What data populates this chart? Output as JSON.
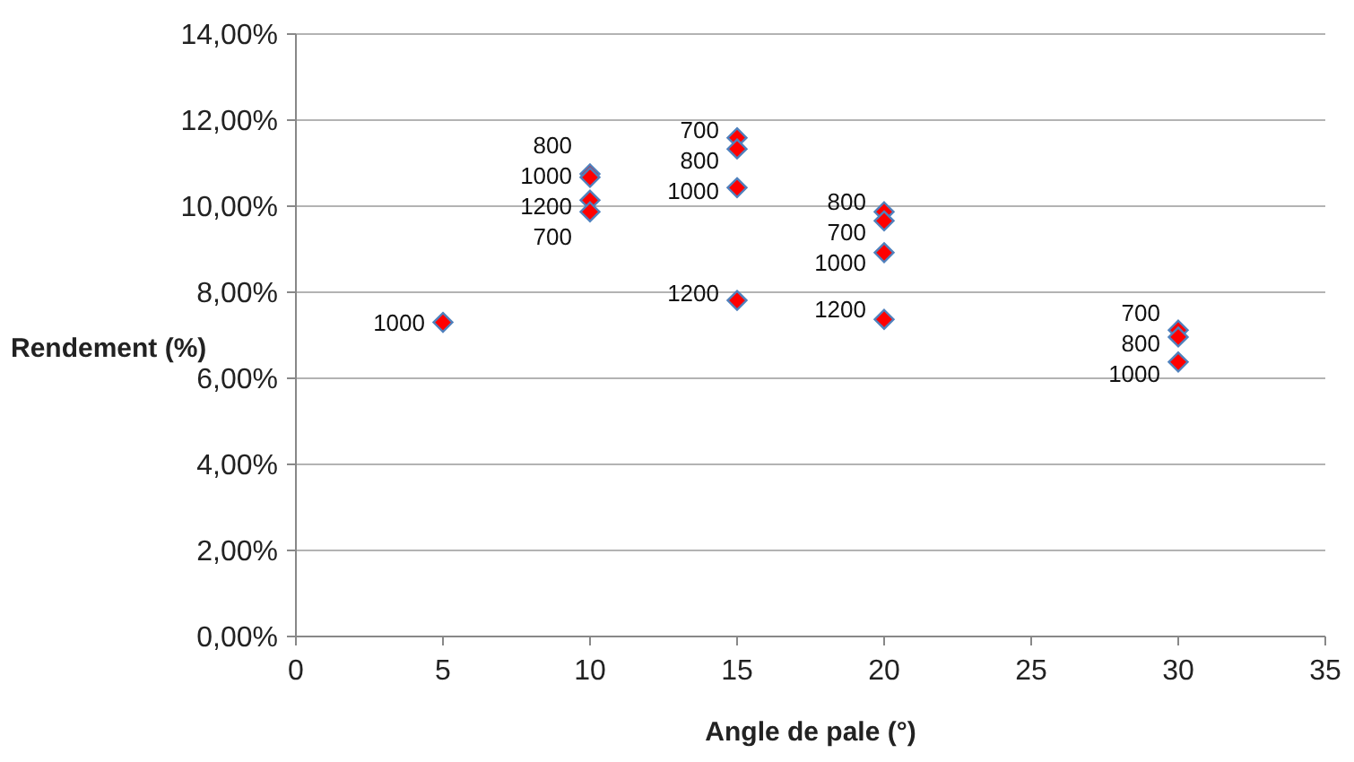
{
  "chart_data": {
    "type": "scatter",
    "xlabel": "Angle de pale (°)",
    "ylabel": "Rendement (%)",
    "x": [
      5,
      10,
      10,
      10,
      10,
      15,
      15,
      15,
      15,
      20,
      20,
      20,
      20,
      30,
      30,
      30
    ],
    "series": [
      {
        "color": "#ff0000",
        "values": [
          7.3,
          10.75,
          10.67,
          10.14,
          9.87,
          11.59,
          11.33,
          10.43,
          7.81,
          9.87,
          9.66,
          8.92,
          7.37,
          7.12,
          6.96,
          6.38
        ]
      }
    ],
    "marker": "diamond",
    "grid": "y",
    "xlim": [
      0,
      35
    ],
    "xticks": [
      0,
      5,
      10,
      15,
      20,
      25,
      30,
      35
    ],
    "ylim": [
      0,
      14
    ],
    "yticks": [
      {
        "value": 0,
        "label": "0,00%"
      },
      {
        "value": 2,
        "label": "2,00%"
      },
      {
        "value": 4,
        "label": "4,00%"
      },
      {
        "value": 6,
        "label": "6,00%"
      },
      {
        "value": 8,
        "label": "8,00%"
      },
      {
        "value": 10,
        "label": "10,00%"
      },
      {
        "value": 12,
        "label": "12,00%"
      },
      {
        "value": 14,
        "label": "14,00%"
      }
    ],
    "annotations": [
      {
        "text": "1000",
        "x": 5,
        "y": 7.3
      },
      {
        "text": "800",
        "x": 10,
        "y": 10.75
      },
      {
        "text": "1000",
        "x": 10,
        "y": 10.67
      },
      {
        "text": "1200",
        "x": 10,
        "y": 10.14
      },
      {
        "text": "700",
        "x": 10,
        "y": 9.87
      },
      {
        "text": "700",
        "x": 15,
        "y": 11.59
      },
      {
        "text": "800",
        "x": 15,
        "y": 11.33
      },
      {
        "text": "1000",
        "x": 15,
        "y": 10.43
      },
      {
        "text": "1200",
        "x": 15,
        "y": 7.81
      },
      {
        "text": "800",
        "x": 20,
        "y": 9.87
      },
      {
        "text": "700",
        "x": 20,
        "y": 9.66
      },
      {
        "text": "1000",
        "x": 20,
        "y": 8.92
      },
      {
        "text": "1200",
        "x": 20,
        "y": 7.37
      },
      {
        "text": "700",
        "x": 30,
        "y": 7.12
      },
      {
        "text": "800",
        "x": 30,
        "y": 6.96
      },
      {
        "text": "1000",
        "x": 30,
        "y": 6.38
      }
    ]
  }
}
